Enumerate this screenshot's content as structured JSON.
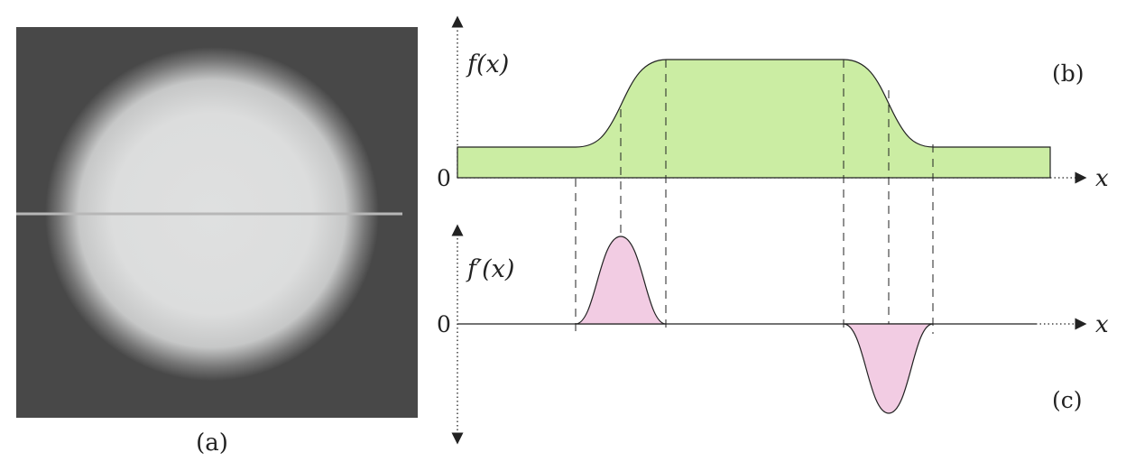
{
  "panels": {
    "a": {
      "label": "(a)"
    },
    "b": {
      "label": "(b)",
      "y_label": "f(x)",
      "zero_label": "0",
      "x_label": "x"
    },
    "c": {
      "label": "(c)",
      "y_label": "f′(x)",
      "zero_label": "0",
      "x_label": "x"
    }
  },
  "colors": {
    "image_background": "#484848",
    "disk": "#dfe0e0",
    "scanline": "#b7b7b7",
    "function_fill": "#cbeda3",
    "derivative_fill": "#f2cce3",
    "line": "#222222"
  }
}
